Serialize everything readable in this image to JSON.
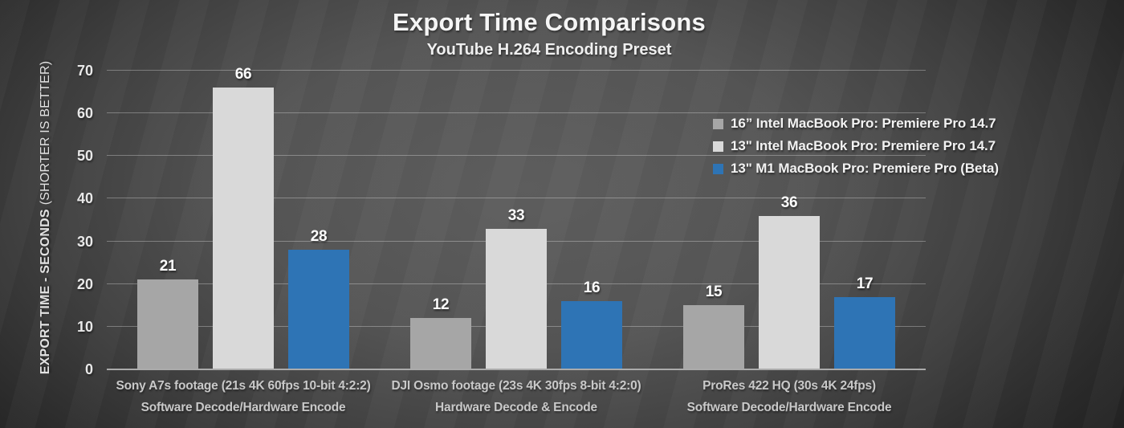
{
  "page": {
    "title": "Export Time Comparisons",
    "subtitle": "YouTube H.264 Encoding Preset"
  },
  "y_axis": {
    "label_bold": "EXPORT TIME - SECONDS",
    "label_normal": "(SHORTER IS BETTER)"
  },
  "chart_data": {
    "type": "bar",
    "title": "Export Time Comparisons",
    "subtitle": "YouTube H.264 Encoding Preset",
    "ylabel": "EXPORT TIME - SECONDS (SHORTER IS BETTER)",
    "ylim": [
      0,
      70
    ],
    "yticks": [
      0,
      10,
      20,
      30,
      40,
      50,
      60,
      70
    ],
    "grid": true,
    "value_labels": true,
    "legend_position": "upper-right",
    "categories": [
      {
        "label": "Sony A7s footage (21s 4K 60fps 10-bit 4:2:2)",
        "sublabel": "Software Decode/Hardware Encode"
      },
      {
        "label": "DJI Osmo footage (23s 4K 30fps 8-bit 4:2:0)",
        "sublabel": "Hardware Decode & Encode"
      },
      {
        "label": "ProRes 422 HQ (30s 4K 24fps)",
        "sublabel": "Software Decode/Hardware Encode"
      }
    ],
    "series": [
      {
        "name": "16” Intel MacBook Pro: Premiere Pro 14.7",
        "color": "#a6a6a6",
        "values": [
          21,
          12,
          15
        ]
      },
      {
        "name": "13\" Intel MacBook Pro: Premiere Pro 14.7",
        "color": "#d9d9d9",
        "values": [
          66,
          33,
          36
        ]
      },
      {
        "name": "13\" M1 MacBook Pro: Premiere Pro (Beta)",
        "color": "#2e74b5",
        "values": [
          28,
          16,
          17
        ]
      }
    ]
  },
  "colors": {
    "background_center": "#5d5d5d",
    "background_edge": "#1c1c1c",
    "gridline": "#7f7f7f",
    "axis_line": "#ababab",
    "title_text": "#f5f5f5",
    "tick_text": "#e8e8e8",
    "category_text": "#c9c9c9",
    "value_label_text": "#fcfcfc",
    "legend_text": "#f2f2f2",
    "bar_gray": "#a6a6a6",
    "bar_light_gray": "#d9d9d9",
    "bar_blue": "#2e74b5"
  }
}
